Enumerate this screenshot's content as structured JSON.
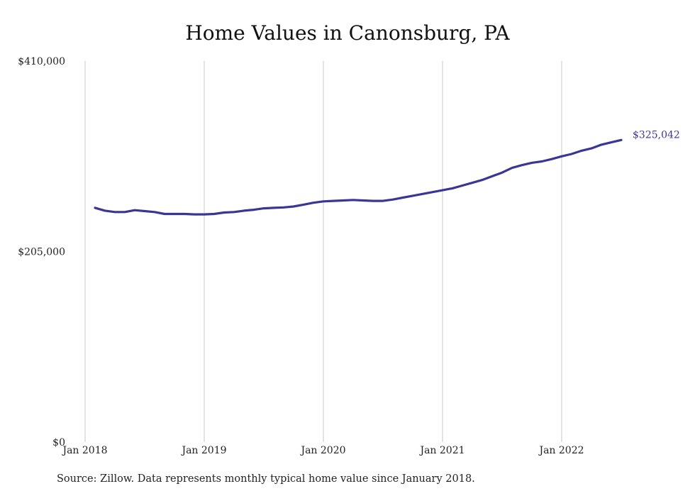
{
  "chart_data": {
    "type": "line",
    "title": "Home Values in Canonsburg, PA",
    "xlabel": "",
    "ylabel": "",
    "ylim": [
      0,
      410000
    ],
    "y_tick_labels": [
      "$410,000",
      "$205,000",
      "$0"
    ],
    "y_ticks": [
      410000,
      205000,
      0
    ],
    "x_tick_labels": [
      "Jan 2018",
      "Jan 2019",
      "Jan 2020",
      "Jan 2021",
      "Jan 2022"
    ],
    "x_ticks": [
      "2018-01",
      "2019-01",
      "2020-01",
      "2021-01",
      "2022-01"
    ],
    "xlim": [
      "2018-01",
      "2022-07"
    ],
    "grid": "vertical",
    "legend": "none",
    "series": [
      {
        "color": "#3a3696",
        "end_label": "$325,042",
        "x": [
          "2018-02",
          "2018-03",
          "2018-04",
          "2018-05",
          "2018-06",
          "2018-07",
          "2018-08",
          "2018-09",
          "2018-10",
          "2018-11",
          "2018-12",
          "2019-01",
          "2019-02",
          "2019-03",
          "2019-04",
          "2019-05",
          "2019-06",
          "2019-07",
          "2019-08",
          "2019-09",
          "2019-10",
          "2019-11",
          "2019-12",
          "2020-01",
          "2020-02",
          "2020-03",
          "2020-04",
          "2020-05",
          "2020-06",
          "2020-07",
          "2020-08",
          "2020-09",
          "2020-10",
          "2020-11",
          "2020-12",
          "2021-01",
          "2021-02",
          "2021-03",
          "2021-04",
          "2021-05",
          "2021-06",
          "2021-07",
          "2021-08",
          "2021-09",
          "2021-10",
          "2021-11",
          "2021-12",
          "2022-01",
          "2022-02",
          "2022-03",
          "2022-04",
          "2022-05",
          "2022-06",
          "2022-07"
        ],
        "values": [
          252000,
          249000,
          247500,
          247500,
          249500,
          248500,
          247500,
          245500,
          245500,
          245500,
          245000,
          245000,
          245500,
          247000,
          247500,
          249000,
          250000,
          251500,
          252000,
          252500,
          253500,
          255500,
          257500,
          259000,
          259500,
          260000,
          260500,
          260000,
          259500,
          259500,
          261000,
          263000,
          265000,
          267000,
          269000,
          271000,
          273000,
          276000,
          279000,
          282000,
          286000,
          290000,
          295000,
          298000,
          300500,
          302000,
          304500,
          307500,
          310000,
          313500,
          316000,
          320000,
          322500,
          325042
        ]
      }
    ]
  },
  "footer": {
    "source": "Source: Zillow. Data represents monthly typical home value since January 2018."
  }
}
